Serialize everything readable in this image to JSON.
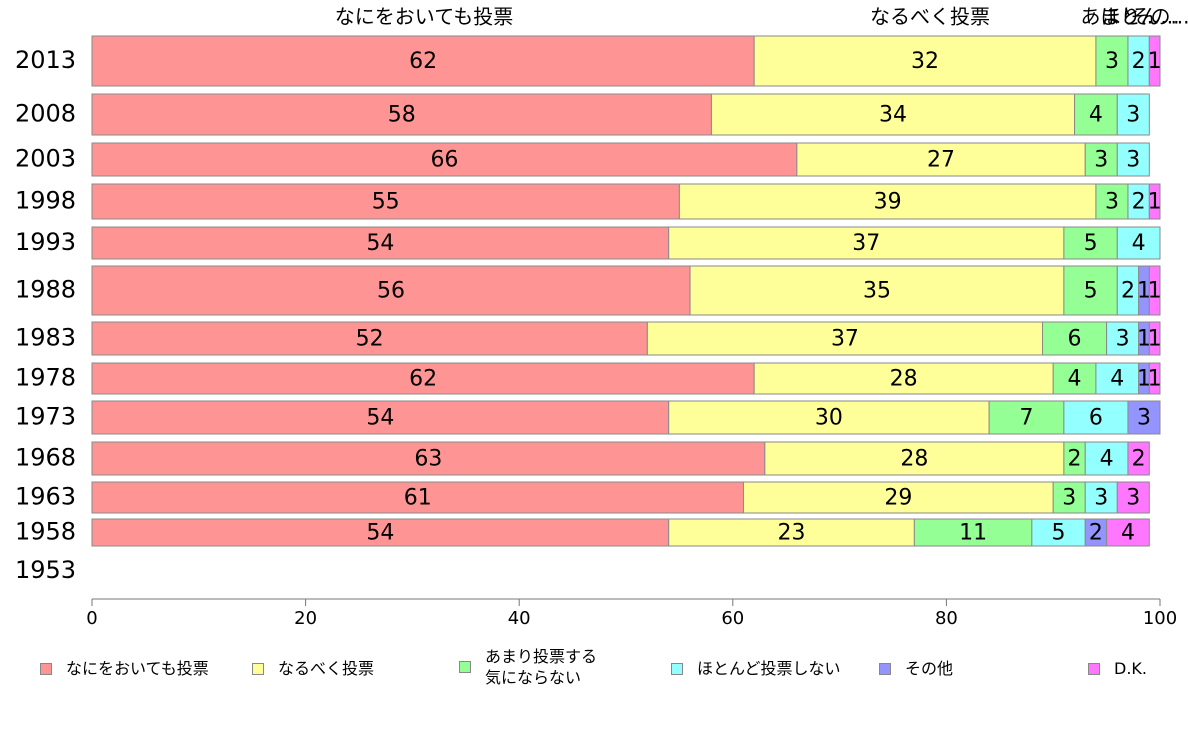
{
  "chart_data": {
    "type": "bar",
    "orientation": "horizontal",
    "stacked": true,
    "title": "",
    "xlabel": "",
    "ylabel": "",
    "xlim": [
      0,
      100
    ],
    "x_ticks": [
      "0",
      "20",
      "40",
      "60",
      "80",
      "100"
    ],
    "grid": false,
    "legend_position": "bottom",
    "categories": [
      "2013",
      "2008",
      "2003",
      "1998",
      "1993",
      "1988",
      "1983",
      "1978",
      "1973",
      "1968",
      "1963",
      "1958",
      "1953"
    ],
    "top_labels": [
      "なにをおいても投票",
      "なるべく投票",
      "あまり...",
      "ほとん...",
      "その..."
    ],
    "series": [
      {
        "name": "なにをおいても投票",
        "color": "#ff9494",
        "values": [
          62,
          58,
          66,
          55,
          54,
          56,
          52,
          62,
          54,
          63,
          61,
          54,
          null
        ]
      },
      {
        "name": "なるべく投票",
        "color": "#ffff99",
        "values": [
          32,
          34,
          27,
          39,
          37,
          35,
          37,
          28,
          30,
          28,
          29,
          23,
          null
        ]
      },
      {
        "name": "あまり投票する\n気にならない",
        "color": "#94ff94",
        "values": [
          3,
          4,
          3,
          3,
          5,
          5,
          6,
          4,
          7,
          2,
          3,
          11,
          null
        ]
      },
      {
        "name": "ほとんど投票しない",
        "color": "#94ffff",
        "values": [
          2,
          3,
          3,
          2,
          4,
          2,
          3,
          4,
          6,
          4,
          3,
          5,
          null
        ]
      },
      {
        "name": "その他",
        "color": "#9494ff",
        "values": [
          0,
          0,
          0,
          0,
          0,
          1,
          1,
          1,
          3,
          0,
          0,
          2,
          null
        ]
      },
      {
        "name": "D.K.",
        "color": "#ff77ff",
        "values": [
          1,
          0,
          0,
          1,
          0,
          1,
          1,
          1,
          0,
          2,
          3,
          4,
          null
        ]
      }
    ]
  }
}
